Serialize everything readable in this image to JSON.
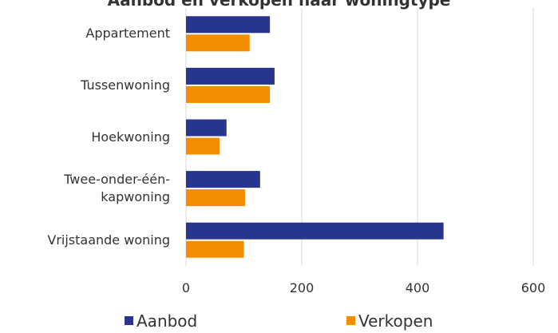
{
  "chart_data": {
    "type": "barh",
    "title": "Aanbod en verkopen naar woningtype",
    "categories": [
      "Appartement",
      "Tussenwoning",
      "Hoekwoning",
      "Twee-onder-één-kapwoning",
      "Vrijstaande woning"
    ],
    "series": [
      {
        "name": "Aanbod",
        "color": "#27358c",
        "values": [
          145,
          153,
          70,
          128,
          445
        ]
      },
      {
        "name": "Verkopen",
        "color": "#f28c00",
        "values": [
          110,
          145,
          58,
          102,
          100
        ]
      }
    ],
    "xlim": [
      0,
      600
    ],
    "xticks": [
      0,
      200,
      400,
      600
    ],
    "grid": true,
    "legend": "bottom"
  }
}
